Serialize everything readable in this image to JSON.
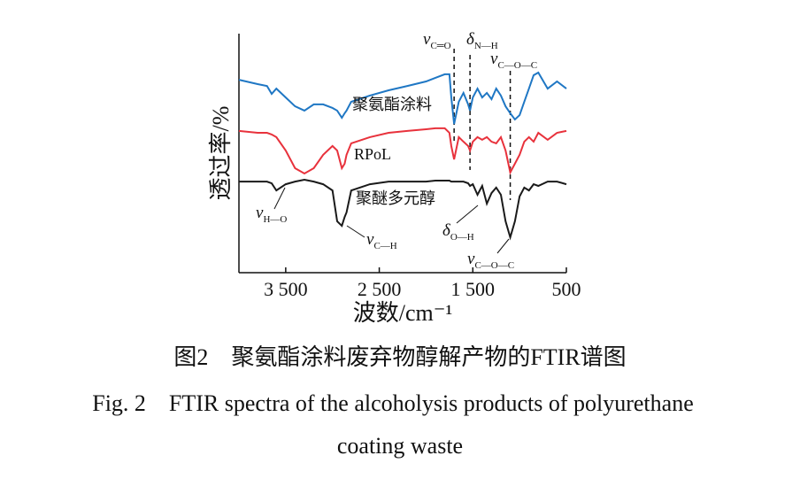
{
  "chart_data": {
    "type": "line",
    "x_label": "波数/cm⁻¹",
    "y_label": "透过率/%",
    "caption_zh": "图2　聚氨酯涂料废弃物醇解产物的FTIR谱图",
    "caption_en_1": "Fig. 2　FTIR spectra of the alcoholysis products of polyurethane",
    "caption_en_2": "coating waste",
    "xlim": [
      4000,
      500
    ],
    "ylim": [
      0,
      100
    ],
    "xticks": [
      {
        "value": 3500,
        "label": "3 500"
      },
      {
        "value": 2500,
        "label": "2 500"
      },
      {
        "value": 1500,
        "label": "1 500"
      },
      500
    ],
    "x": [
      4000,
      3800,
      3700,
      3650,
      3600,
      3500,
      3400,
      3300,
      3200,
      3100,
      3000,
      2950,
      2900,
      2870,
      2850,
      2800,
      2600,
      2400,
      2200,
      2000,
      1900,
      1800,
      1750,
      1730,
      1700,
      1650,
      1600,
      1550,
      1530,
      1500,
      1450,
      1400,
      1350,
      1300,
      1250,
      1200,
      1150,
      1100,
      1050,
      1000,
      950,
      900,
      850,
      800,
      700,
      600,
      500
    ],
    "series": [
      {
        "name": "聚氨酯涂料",
        "color": "#1f77c4",
        "values": [
          80.7,
          78.9,
          78.1,
          74.8,
          77.0,
          73.3,
          69.6,
          67.8,
          70.4,
          70.4,
          68.9,
          67.8,
          64.8,
          66.7,
          67.8,
          71.5,
          74.1,
          76.3,
          78.1,
          80.0,
          81.5,
          83.0,
          83.0,
          73.3,
          62.2,
          71.5,
          75.2,
          70.4,
          67.8,
          73.3,
          77.0,
          73.3,
          75.2,
          72.6,
          77.0,
          74.1,
          69.6,
          66.7,
          64.1,
          65.9,
          71.5,
          77.0,
          82.6,
          83.7,
          77.0,
          80.0,
          77.0
        ]
      },
      {
        "name": "RPoL",
        "color": "#e8323c",
        "values": [
          59.3,
          58.5,
          58.5,
          57.8,
          56.7,
          51.1,
          43.7,
          41.5,
          43.7,
          49.3,
          53.0,
          51.1,
          43.7,
          45.6,
          49.3,
          54.1,
          56.7,
          58.5,
          59.3,
          60.0,
          60.4,
          60.4,
          58.5,
          53.0,
          47.4,
          56.7,
          54.8,
          53.0,
          51.1,
          54.8,
          56.7,
          55.6,
          56.7,
          54.8,
          54.1,
          56.7,
          51.1,
          41.9,
          45.6,
          49.3,
          54.8,
          56.7,
          54.8,
          58.5,
          55.6,
          58.5,
          59.3
        ]
      },
      {
        "name": "聚醚多元醇",
        "color": "#1a1a1a",
        "values": [
          38.1,
          38.1,
          38.1,
          37.4,
          34.4,
          37.0,
          38.1,
          38.9,
          38.1,
          37.0,
          34.4,
          21.5,
          19.6,
          23.3,
          25.2,
          34.4,
          37.0,
          38.1,
          38.1,
          38.1,
          38.5,
          38.5,
          38.5,
          38.1,
          38.1,
          38.1,
          38.1,
          37.4,
          36.3,
          37.0,
          32.6,
          36.3,
          28.9,
          33.3,
          35.6,
          32.6,
          21.5,
          14.8,
          21.5,
          31.9,
          35.6,
          34.4,
          37.0,
          36.3,
          38.1,
          38.1,
          37.0
        ]
      }
    ],
    "markers": [
      1700,
      1530,
      1100
    ],
    "annotations": [
      {
        "symbol": "v",
        "sub": "C═O"
      },
      {
        "symbol": "δ",
        "sub": "N—H"
      },
      {
        "symbol": "v",
        "sub": "C—O—C"
      },
      {
        "symbol": "v",
        "sub": "H—O"
      },
      {
        "symbol": "v",
        "sub": "C—H"
      },
      {
        "symbol": "δ",
        "sub": "O—H"
      },
      {
        "symbol": "v",
        "sub": "C—O—C"
      }
    ]
  }
}
